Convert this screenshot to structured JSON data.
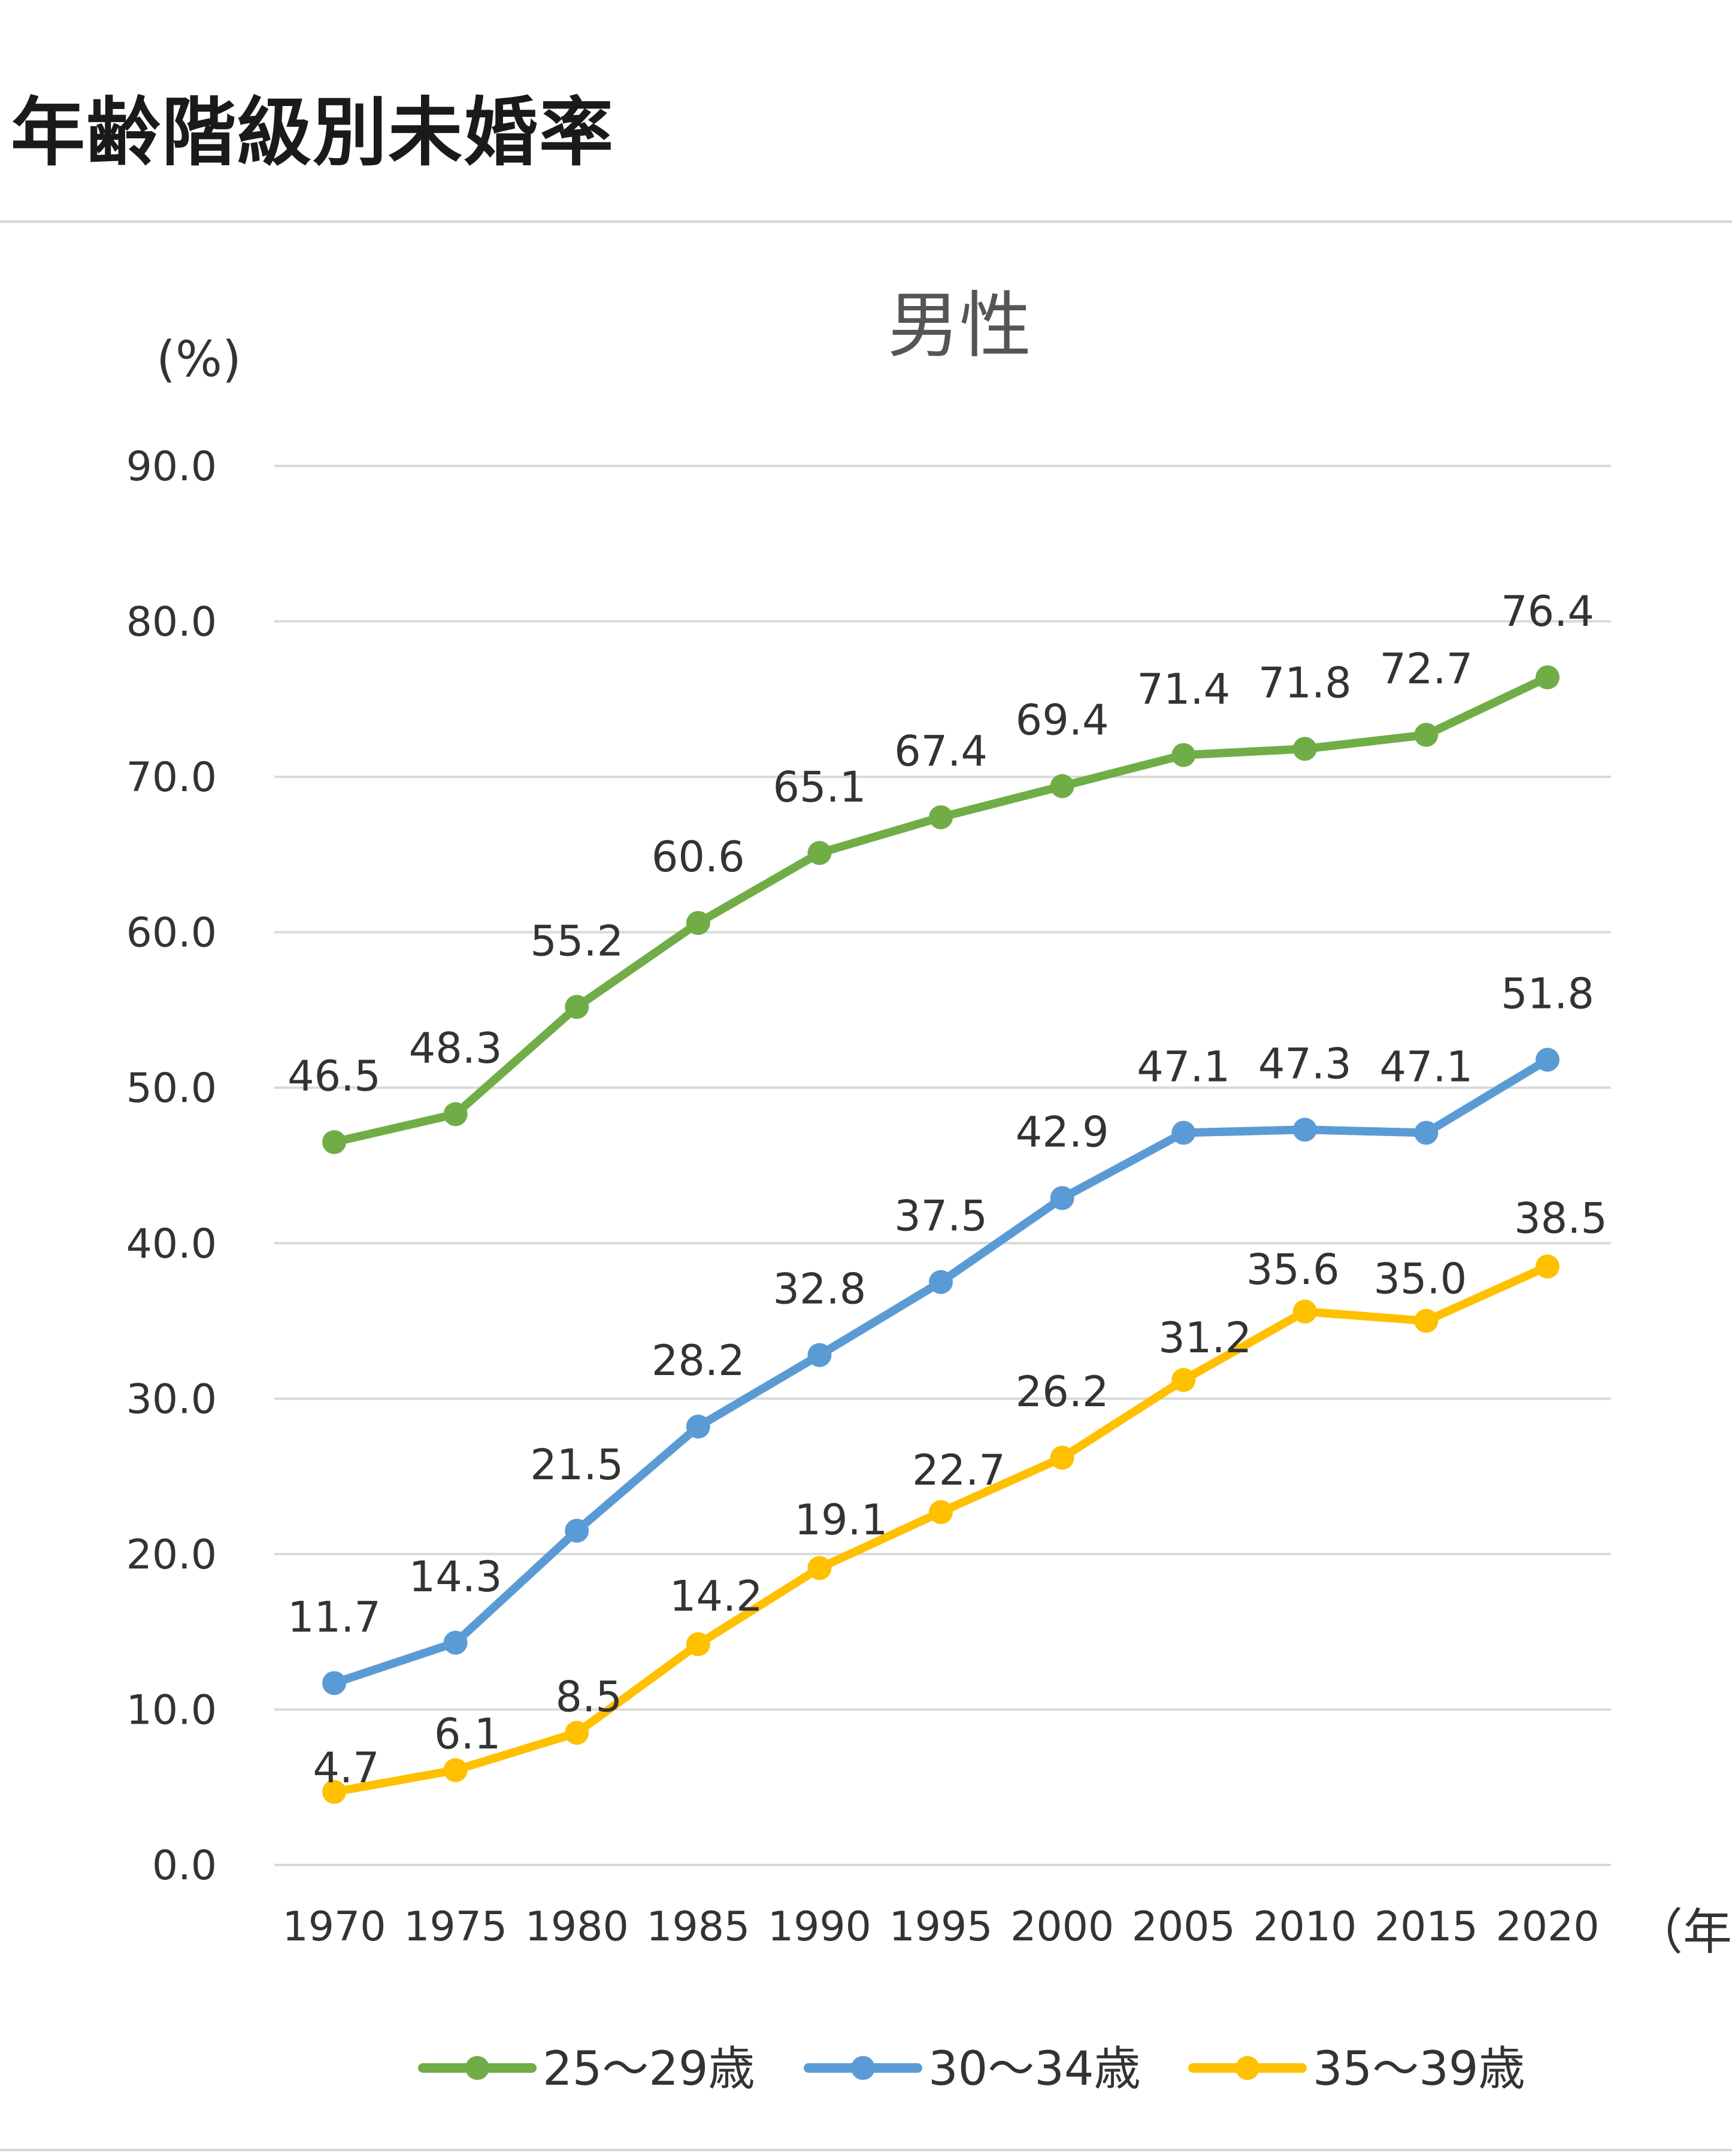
{
  "page": {
    "title": "年齢階級別未婚率"
  },
  "chart_data": {
    "type": "line",
    "title": "男性",
    "y_unit_label": "(%)",
    "x_unit_label": "（年）",
    "ylim": [
      0,
      90
    ],
    "y_ticks": [
      "0.0",
      "10.0",
      "20.0",
      "30.0",
      "40.0",
      "50.0",
      "60.0",
      "70.0",
      "80.0",
      "90.0"
    ],
    "categories": [
      "1970",
      "1975",
      "1980",
      "1985",
      "1990",
      "1995",
      "2000",
      "2005",
      "2010",
      "2015",
      "2020"
    ],
    "grid": true,
    "legend_position": "bottom",
    "series": [
      {
        "name": "25〜29歳",
        "color": "#70ad47",
        "values": [
          46.5,
          48.3,
          55.2,
          60.6,
          65.1,
          67.4,
          69.4,
          71.4,
          71.8,
          72.7,
          76.4
        ]
      },
      {
        "name": "30〜34歳",
        "color": "#5b9bd5",
        "values": [
          11.7,
          14.3,
          21.5,
          28.2,
          32.8,
          37.5,
          42.9,
          47.1,
          47.3,
          47.1,
          51.8
        ]
      },
      {
        "name": "35〜39歳",
        "color": "#ffc000",
        "values": [
          4.7,
          6.1,
          8.5,
          14.2,
          19.1,
          22.7,
          26.2,
          31.2,
          35.6,
          35.0,
          38.5
        ]
      }
    ]
  }
}
